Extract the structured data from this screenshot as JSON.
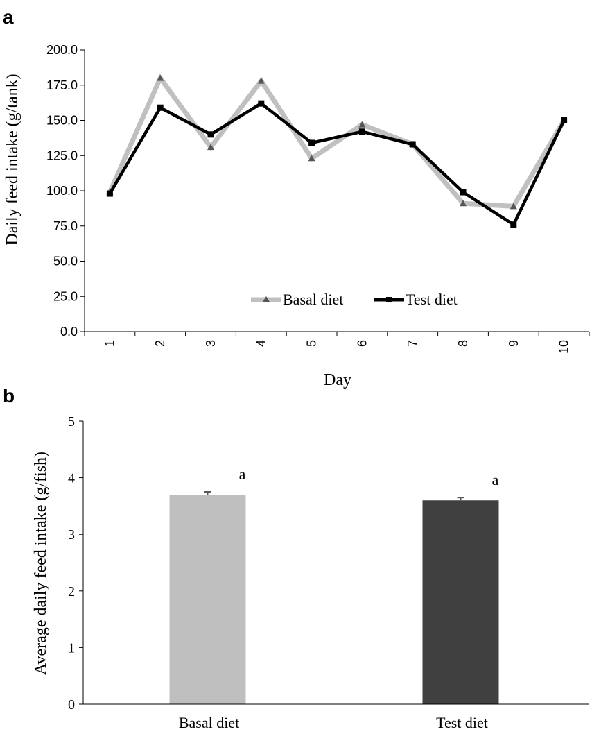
{
  "panel_labels": {
    "a": "a",
    "b": "b"
  },
  "colors": {
    "basal": "#c0c0c0",
    "basal_marker": "#555555",
    "test": "#000000",
    "bar_basal": "#bfbfbf",
    "bar_test": "#404040",
    "error": "#595959"
  },
  "chart_data": [
    {
      "type": "line",
      "x": [
        1,
        2,
        3,
        4,
        5,
        6,
        7,
        8,
        9,
        10
      ],
      "categories": [
        "1",
        "2",
        "3",
        "4",
        "5",
        "6",
        "7",
        "8",
        "9",
        "10"
      ],
      "series": [
        {
          "name": "Basal diet",
          "values": [
            99,
            180,
            131,
            178,
            123,
            147,
            133,
            91,
            89,
            150
          ]
        },
        {
          "name": "Test diet",
          "values": [
            98,
            159,
            140,
            162,
            134,
            142,
            133,
            99,
            76,
            150
          ]
        }
      ],
      "xlabel": "Day",
      "ylabel": "Daily feed intake (g/tank)",
      "ylim": [
        0,
        200
      ],
      "yticks": [
        "0.0",
        "25.0",
        "50.0",
        "75.0",
        "100.0",
        "125.0",
        "150.0",
        "175.0",
        "200.0"
      ],
      "legend": "bottom-center",
      "grid": false
    },
    {
      "type": "bar",
      "categories": [
        "Basal diet",
        "Test diet"
      ],
      "values": [
        3.7,
        3.6
      ],
      "errors": [
        0.05,
        0.05
      ],
      "annotations": [
        "a",
        "a"
      ],
      "xlabel": "",
      "ylabel": "Average daily feed intake (g/fish)",
      "ylim": [
        0,
        5
      ],
      "yticks": [
        "0",
        "1",
        "2",
        "3",
        "4",
        "5"
      ],
      "grid": false
    }
  ]
}
